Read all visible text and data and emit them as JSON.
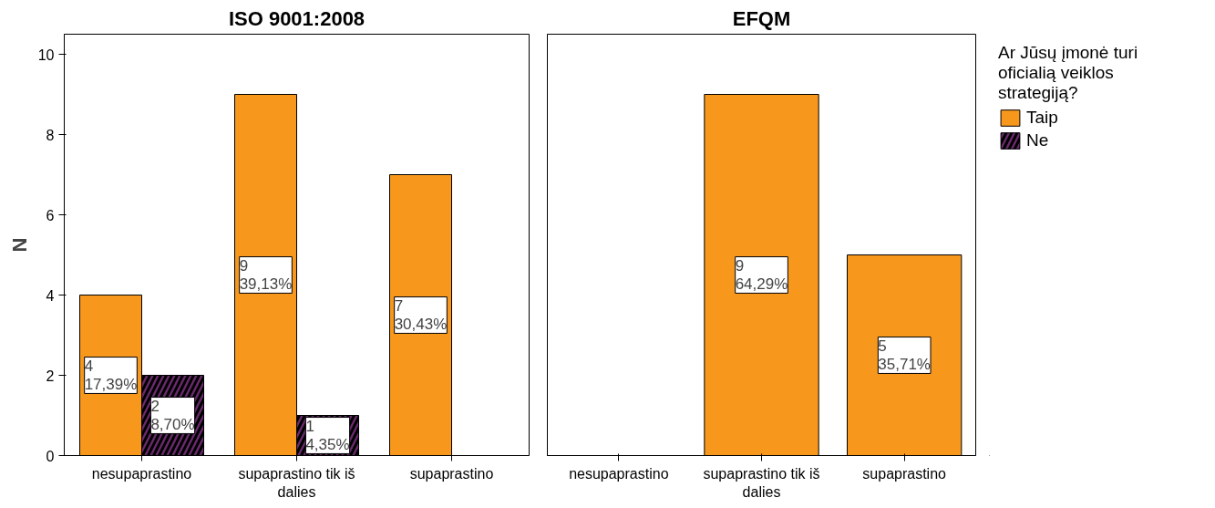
{
  "chart_data": [
    {
      "type": "bar",
      "title": "ISO 9001:2008",
      "ylabel": "N",
      "categories": [
        "nesupaprastino",
        "supaprastino tik iš dalies",
        "supaprastino"
      ],
      "series": [
        {
          "name": "Taip",
          "color": "#f7981d",
          "values": [
            4,
            9,
            7
          ],
          "value_labels": [
            "4\n17,39%",
            "9\n39,13%",
            "7\n30,43%"
          ]
        },
        {
          "name": "Ne",
          "color": "#6b2a6e",
          "values": [
            2,
            1,
            null
          ],
          "value_labels": [
            "2\n8,70%",
            "1\n4,35%",
            null
          ]
        }
      ],
      "ylim": [
        0,
        10.5
      ],
      "yticks": [
        0,
        2,
        4,
        6,
        8,
        10
      ],
      "grid": false,
      "legend": "right",
      "legend_title": "Ar Jūsų įmonė turi oficialią veiklos strategiją?"
    },
    {
      "type": "bar",
      "title": "EFQM",
      "categories": [
        "nesupaprastino",
        "supaprastino tik iš dalies",
        "supaprastino"
      ],
      "series": [
        {
          "color": "#f7981d",
          "values": [
            null,
            9,
            5
          ],
          "value_labels": [
            null,
            "9\n64,29%",
            "5\n35,71%"
          ]
        }
      ],
      "ylim": [
        0,
        10.5
      ],
      "yticks": [
        0,
        2,
        4,
        6,
        8,
        10
      ],
      "grid": false,
      "tick_labels": "x"
    }
  ]
}
